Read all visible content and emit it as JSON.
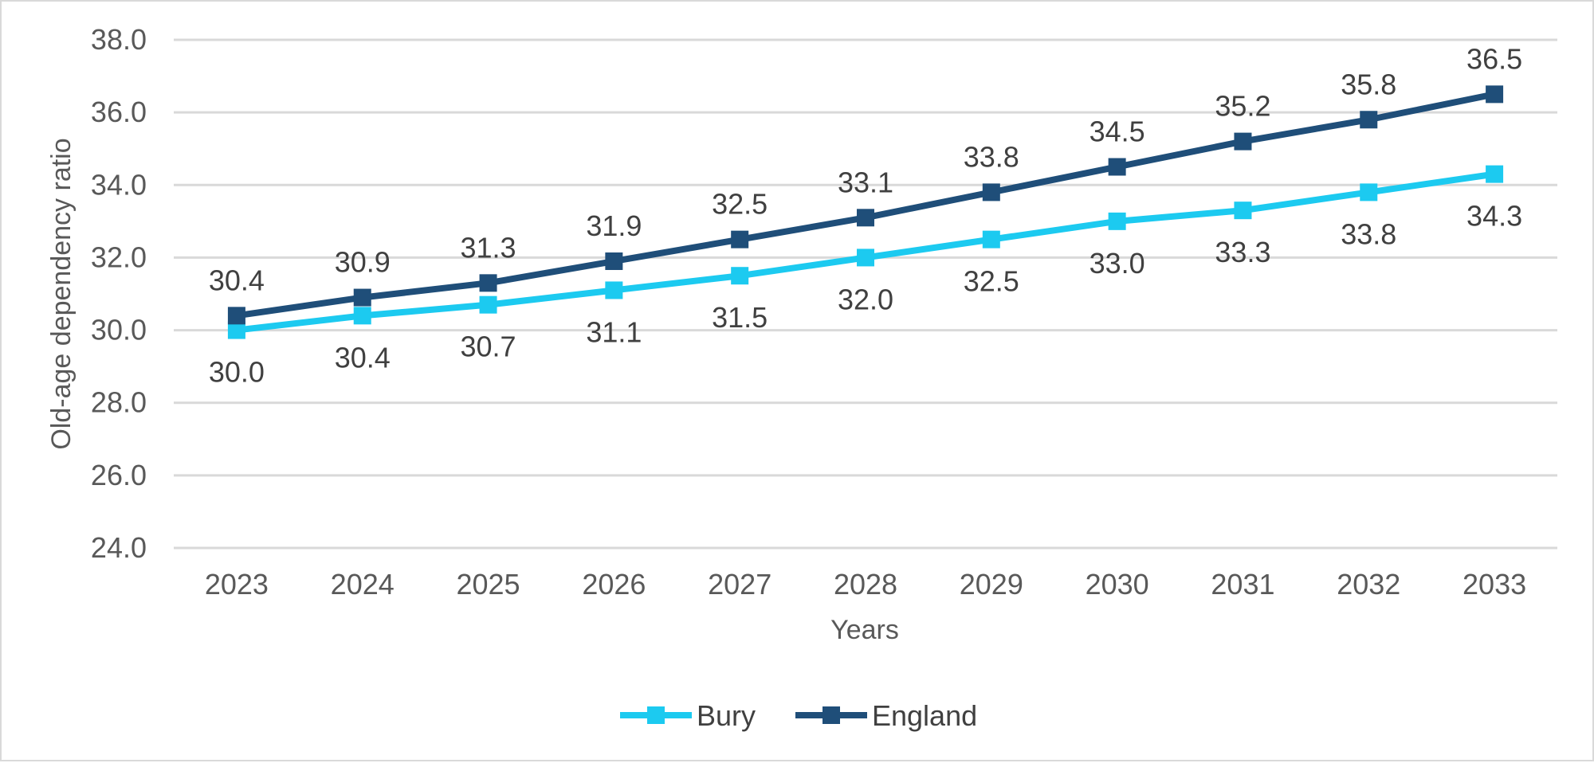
{
  "chart_data": {
    "type": "line",
    "title": "",
    "xlabel": "Years",
    "ylabel": "Old-age dependency ratio",
    "categories": [
      "2023",
      "2024",
      "2025",
      "2026",
      "2027",
      "2028",
      "2029",
      "2030",
      "2031",
      "2032",
      "2033"
    ],
    "ylim": [
      24.0,
      38.0
    ],
    "yticks": [
      "24.0",
      "26.0",
      "28.0",
      "30.0",
      "32.0",
      "34.0",
      "36.0",
      "38.0"
    ],
    "grid": "horizontal",
    "legend_position": "bottom",
    "series": [
      {
        "name": "Bury",
        "color": "#1ccaf0",
        "marker": "square",
        "label_position": "below",
        "values": [
          30.0,
          30.4,
          30.7,
          31.1,
          31.5,
          32.0,
          32.5,
          33.0,
          33.3,
          33.8,
          34.3
        ],
        "labels": [
          "30.0",
          "30.4",
          "30.7",
          "31.1",
          "31.5",
          "32.0",
          "32.5",
          "33.0",
          "33.3",
          "33.8",
          "34.3"
        ]
      },
      {
        "name": "England",
        "color": "#1f4e79",
        "marker": "square",
        "label_position": "above",
        "values": [
          30.4,
          30.9,
          31.3,
          31.9,
          32.5,
          33.1,
          33.8,
          34.5,
          35.2,
          35.8,
          36.5
        ],
        "labels": [
          "30.4",
          "30.9",
          "31.3",
          "31.9",
          "32.5",
          "33.1",
          "33.8",
          "34.5",
          "35.2",
          "35.8",
          "36.5"
        ]
      }
    ]
  },
  "colors": {
    "gridline": "#d9d9d9",
    "tick_text": "#595959",
    "label_text": "#404040",
    "frame": "#d9d9d9"
  }
}
